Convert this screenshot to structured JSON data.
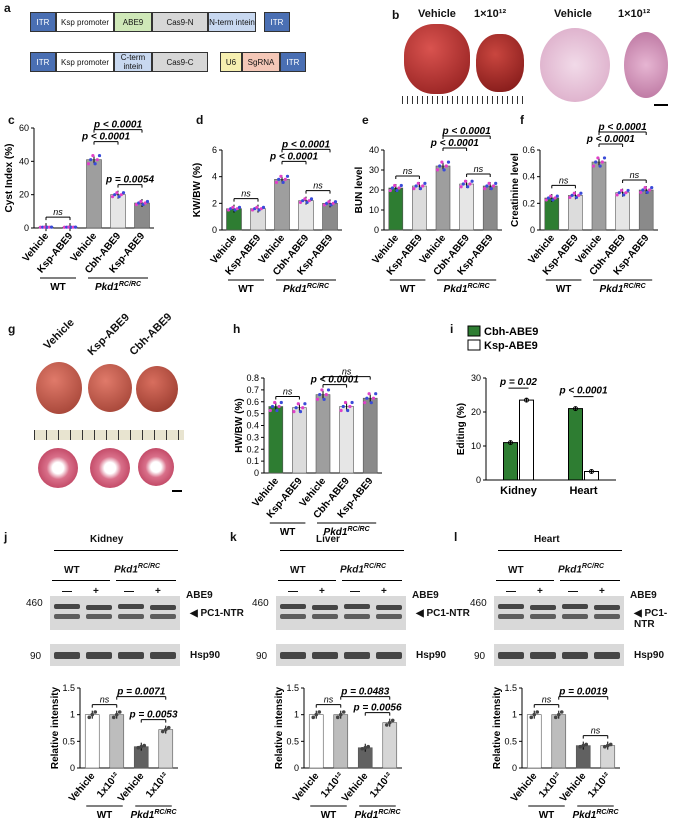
{
  "panel_letters": {
    "a": "a",
    "b": "b",
    "c": "c",
    "d": "d",
    "e": "e",
    "f": "f",
    "g": "g",
    "h": "h",
    "i": "i",
    "j": "j",
    "k": "k",
    "l": "l"
  },
  "construct1": [
    "ITR",
    "Ksp promoter",
    "ABE9",
    "Cas9-N",
    "N-term intein",
    "ITR"
  ],
  "construct2": [
    "ITR",
    "Ksp promoter",
    "C-term intein",
    "Cas9-C",
    "U6",
    "SgRNA",
    "ITR"
  ],
  "panel_b": {
    "vehicle": "Vehicle",
    "dose": "1×10¹²"
  },
  "panel_g": {
    "labels": [
      "Vehicle",
      "Ksp-ABE9",
      "Cbh-ABE9"
    ]
  },
  "groups5": [
    "Vehicle",
    "Ksp-ABE9",
    "Vehicle",
    "Cbh-ABE9",
    "Ksp-ABE9"
  ],
  "group_wt": "WT",
  "group_pkd": "Pkd1",
  "group_pkd_sup": "RC/RC",
  "colors": {
    "wt_vehicle": "#2e7d32",
    "ksp": "#dcdcdc",
    "pkd_vehicle": "#9e9e9e",
    "cbh": "#e6e6e6",
    "ksp2": "#8a8a8a",
    "dot_pink": "#e040c8",
    "dot_blue": "#3a4bd8",
    "heart_dark": "#2e7d32"
  },
  "chart_data": [
    {
      "type": "bar",
      "panel": "c",
      "ylabel": "Cyst Index (%)",
      "ylim": [
        0,
        60
      ],
      "ticks": [
        0,
        20,
        40,
        60
      ],
      "categories": [
        "Vehicle",
        "Ksp-ABE9",
        "Vehicle",
        "Cbh-ABE9",
        "Ksp-ABE9"
      ],
      "values": [
        0.5,
        0.5,
        41,
        20,
        15
      ],
      "annotations": [
        {
          "text": "ns",
          "from": 0,
          "to": 1
        },
        {
          "text": "p = 0.0054",
          "from": 3,
          "to": 4
        },
        {
          "text": "p < 0.0001",
          "from": 2,
          "to": 3
        },
        {
          "text": "p < 0.0001",
          "from": 2,
          "to": 4
        }
      ]
    },
    {
      "type": "bar",
      "panel": "d",
      "ylabel": "KW/BW (%)",
      "ylim": [
        0,
        6
      ],
      "ticks": [
        0,
        2,
        4,
        6
      ],
      "categories": [
        "Vehicle",
        "Ksp-ABE9",
        "Vehicle",
        "Cbh-ABE9",
        "Ksp-ABE9"
      ],
      "values": [
        1.6,
        1.6,
        3.8,
        2.2,
        2.0
      ],
      "annotations": [
        {
          "text": "ns",
          "from": 0,
          "to": 1
        },
        {
          "text": "ns",
          "from": 3,
          "to": 4
        },
        {
          "text": "p < 0.0001",
          "from": 2,
          "to": 3
        },
        {
          "text": "p < 0.0001",
          "from": 2,
          "to": 4
        }
      ]
    },
    {
      "type": "bar",
      "panel": "e",
      "ylabel": "BUN level",
      "ylim": [
        0,
        40
      ],
      "ticks": [
        0,
        10,
        20,
        30,
        40
      ],
      "categories": [
        "Vehicle",
        "Ksp-ABE9",
        "Vehicle",
        "Cbh-ABE9",
        "Ksp-ABE9"
      ],
      "values": [
        21,
        22,
        32,
        23,
        22
      ],
      "annotations": [
        {
          "text": "ns",
          "from": 0,
          "to": 1
        },
        {
          "text": "ns",
          "from": 3,
          "to": 4
        },
        {
          "text": "p < 0.0001",
          "from": 2,
          "to": 3
        },
        {
          "text": "p < 0.0001",
          "from": 2,
          "to": 4
        }
      ]
    },
    {
      "type": "bar",
      "panel": "f",
      "ylabel": "Creatinine  level",
      "ylim": [
        0,
        0.6
      ],
      "ticks": [
        0,
        0.2,
        0.4,
        0.6
      ],
      "categories": [
        "Vehicle",
        "Ksp-ABE9",
        "Vehicle",
        "Cbh-ABE9",
        "Ksp-ABE9"
      ],
      "values": [
        0.24,
        0.26,
        0.51,
        0.28,
        0.3
      ],
      "annotations": [
        {
          "text": "ns",
          "from": 0,
          "to": 1
        },
        {
          "text": "ns",
          "from": 3,
          "to": 4
        },
        {
          "text": "p < 0.0001",
          "from": 2,
          "to": 3
        },
        {
          "text": "p < 0.0001",
          "from": 2,
          "to": 4
        }
      ]
    },
    {
      "type": "bar",
      "panel": "h",
      "ylabel": "HW/BW (%)",
      "ylim": [
        0,
        0.8
      ],
      "ticks": [
        0,
        0.1,
        0.2,
        0.3,
        0.4,
        0.5,
        0.6,
        0.7,
        0.8
      ],
      "categories": [
        "Vehicle",
        "Ksp-ABE9",
        "Vehicle",
        "Cbh-ABE9",
        "Ksp-ABE9"
      ],
      "values": [
        0.56,
        0.55,
        0.66,
        0.56,
        0.63
      ],
      "annotations": [
        {
          "text": "ns",
          "from": 0,
          "to": 1
        },
        {
          "text": "p < 0.0001",
          "from": 2,
          "to": 3
        },
        {
          "text": "ns",
          "from": 2,
          "to": 4
        }
      ]
    },
    {
      "type": "bar",
      "panel": "i",
      "ylabel": "Editing (%)",
      "ylim": [
        0,
        30
      ],
      "ticks": [
        0,
        10,
        20,
        30
      ],
      "categories": [
        "Kidney",
        "Heart"
      ],
      "series": [
        {
          "name": "Cbh-ABE9",
          "values": [
            11,
            21
          ]
        },
        {
          "name": "Ksp-ABE9",
          "values": [
            23.5,
            2.5
          ]
        }
      ],
      "annotations": [
        {
          "text": "p = 0.02",
          "cat": 0
        },
        {
          "text": "p < 0.0001",
          "cat": 1
        }
      ]
    },
    {
      "type": "bar",
      "panel": "j",
      "ylabel": "Relative intensity",
      "ylim": [
        0,
        1.5
      ],
      "ticks": [
        0,
        0.5,
        1.0,
        1.5
      ],
      "categories": [
        "Vehicle",
        "1x10¹²",
        "Vehicle",
        "1x10¹²"
      ],
      "values": [
        1.0,
        1.0,
        0.4,
        0.72
      ],
      "annotations": [
        {
          "text": "ns",
          "from": 0,
          "to": 1
        },
        {
          "text": "p = 0.0053",
          "from": 2,
          "to": 3
        },
        {
          "text": "p = 0.0071",
          "from": 1,
          "to": 3
        }
      ]
    },
    {
      "type": "bar",
      "panel": "k",
      "ylabel": "Relative intensity",
      "ylim": [
        0,
        1.5
      ],
      "ticks": [
        0,
        0.5,
        1.0,
        1.5
      ],
      "categories": [
        "Vehicle",
        "1x10¹²",
        "Vehicle",
        "1x10¹²"
      ],
      "values": [
        1.0,
        1.0,
        0.38,
        0.85
      ],
      "annotations": [
        {
          "text": "ns",
          "from": 0,
          "to": 1
        },
        {
          "text": "p = 0.0056",
          "from": 2,
          "to": 3
        },
        {
          "text": "p = 0.0483",
          "from": 1,
          "to": 3
        }
      ]
    },
    {
      "type": "bar",
      "panel": "l",
      "ylabel": "Relative intensity",
      "ylim": [
        0,
        1.5
      ],
      "ticks": [
        0,
        0.5,
        1.0,
        1.5
      ],
      "categories": [
        "Vehicle",
        "1x10¹²",
        "Vehicle",
        "1x10¹²"
      ],
      "values": [
        1.0,
        1.0,
        0.42,
        0.42
      ],
      "annotations": [
        {
          "text": "ns",
          "from": 0,
          "to": 1
        },
        {
          "text": "ns",
          "from": 2,
          "to": 3
        },
        {
          "text": "p = 0.0019",
          "from": 1,
          "to": 3
        }
      ]
    }
  ],
  "blots": [
    {
      "title": "Kidney"
    },
    {
      "title": "Liver"
    },
    {
      "title": "Heart"
    }
  ],
  "blot_labels": {
    "wt": "WT",
    "pkd": "Pkd1",
    "pkd_sup": "RC/RC",
    "abe9": "ABE9",
    "minus": "—",
    "plus": "+",
    "pc1": "PC1-NTR",
    "hsp": "Hsp90",
    "mw460": "460",
    "mw90": "90"
  }
}
